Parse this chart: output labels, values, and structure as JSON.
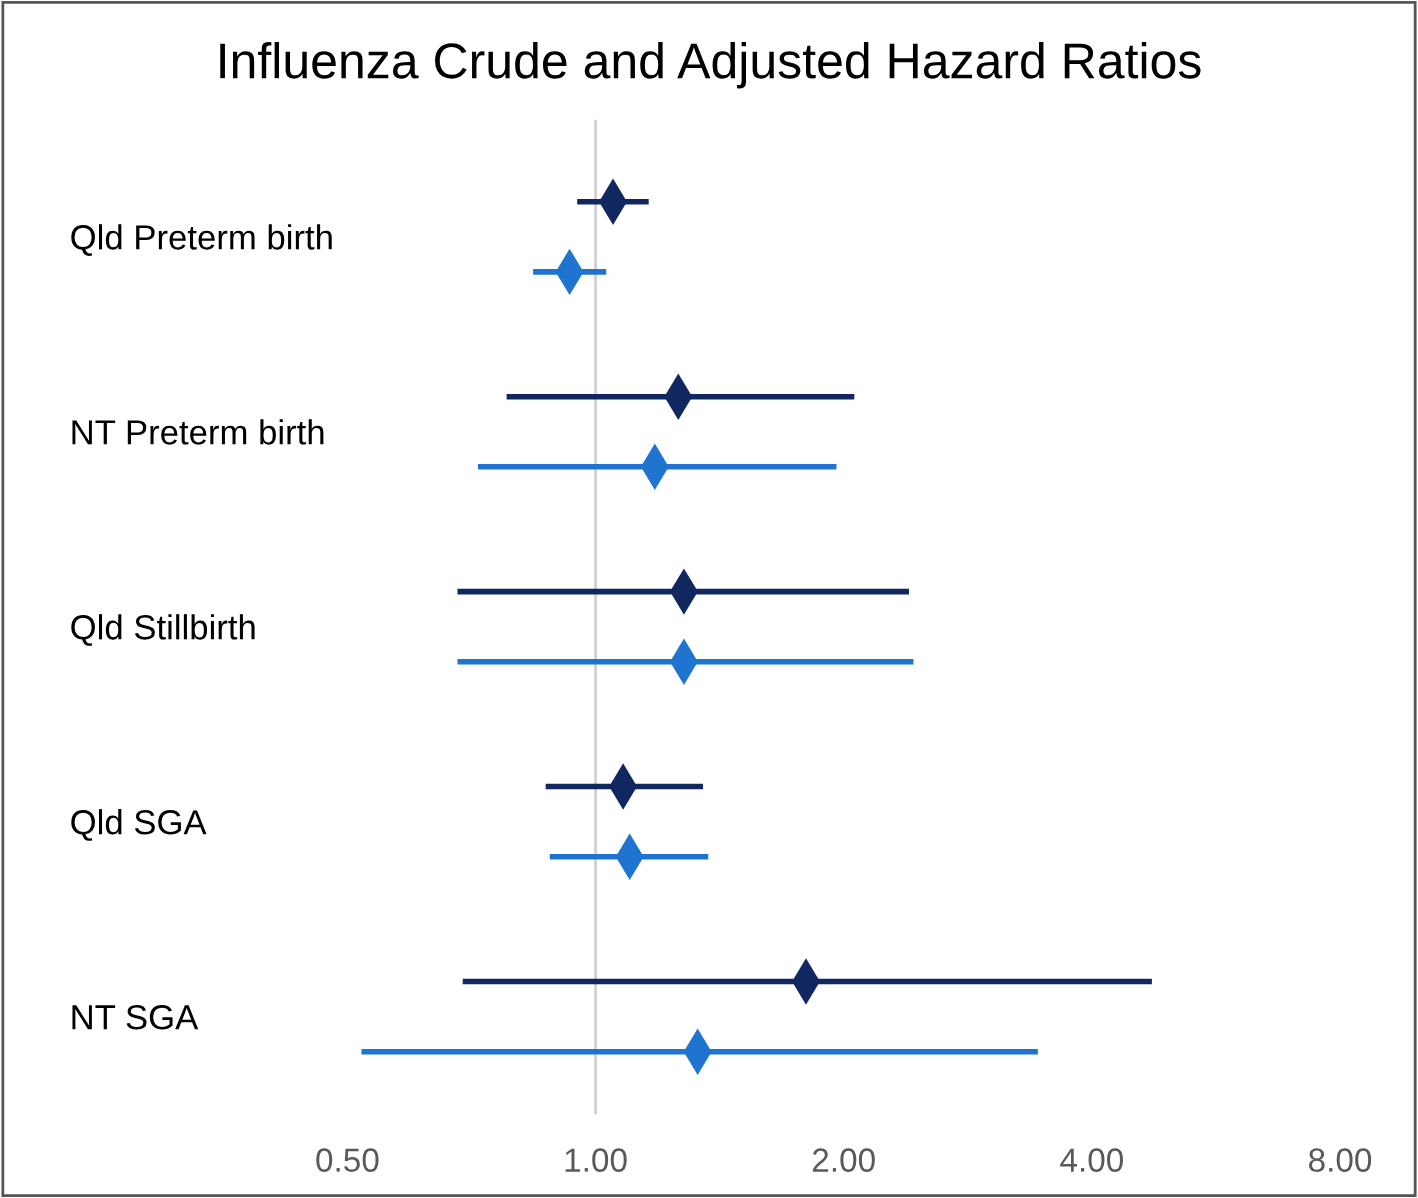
{
  "chart_data": {
    "type": "scatter",
    "orientation": "horizontal",
    "title": "Influenza Crude and Adjusted Hazard Ratios",
    "categories": [
      "Qld Preterm birth",
      "NT Preterm birth",
      "Qld Stillbirth",
      "Qld SGA",
      "NT SGA"
    ],
    "series": [
      {
        "color": "#10275f",
        "values": [
          1.05,
          1.26,
          1.28,
          1.08,
          1.8
        ],
        "errors": [
          [
            0.95,
            1.16
          ],
          [
            0.78,
            2.06
          ],
          [
            0.68,
            2.4
          ],
          [
            0.87,
            1.35
          ],
          [
            0.69,
            4.73
          ]
        ]
      },
      {
        "color": "#1f74cf",
        "values": [
          0.93,
          1.18,
          1.28,
          1.1,
          1.33
        ],
        "errors": [
          [
            0.84,
            1.03
          ],
          [
            0.72,
            1.96
          ],
          [
            0.68,
            2.43
          ],
          [
            0.88,
            1.37
          ],
          [
            0.52,
            3.44
          ]
        ]
      }
    ],
    "log": "x",
    "xlim": [
      0.5,
      8
    ],
    "xticks": [
      {
        "value": 0.5,
        "label": "0.50"
      },
      {
        "value": 1,
        "label": "1.00"
      },
      {
        "value": 2,
        "label": "2.00"
      },
      {
        "value": 4,
        "label": "4.00"
      },
      {
        "value": 8,
        "label": "8.00"
      }
    ],
    "ref_lines": [
      {
        "axis": "x",
        "value": 1,
        "color": "#d0d0d0"
      }
    ],
    "marker": "diamond",
    "grid": false,
    "legend": false
  }
}
